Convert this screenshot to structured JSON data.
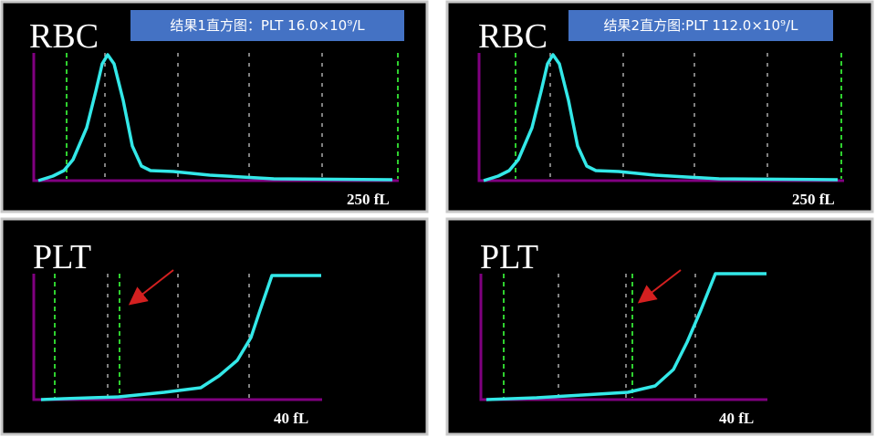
{
  "panels": [
    {
      "title": "结果1直方图：PLT 16.0×10⁹/L",
      "rbc": {
        "label": "RBC",
        "axis_label": "250 fL"
      },
      "plt": {
        "label": "PLT",
        "axis_label": "40 fL"
      }
    },
    {
      "title": "结果2直方图:PLT 112.0×10⁹/L",
      "rbc": {
        "label": "RBC",
        "axis_label": "250 fL"
      },
      "plt": {
        "label": "PLT",
        "axis_label": "40 fL"
      }
    }
  ]
}
